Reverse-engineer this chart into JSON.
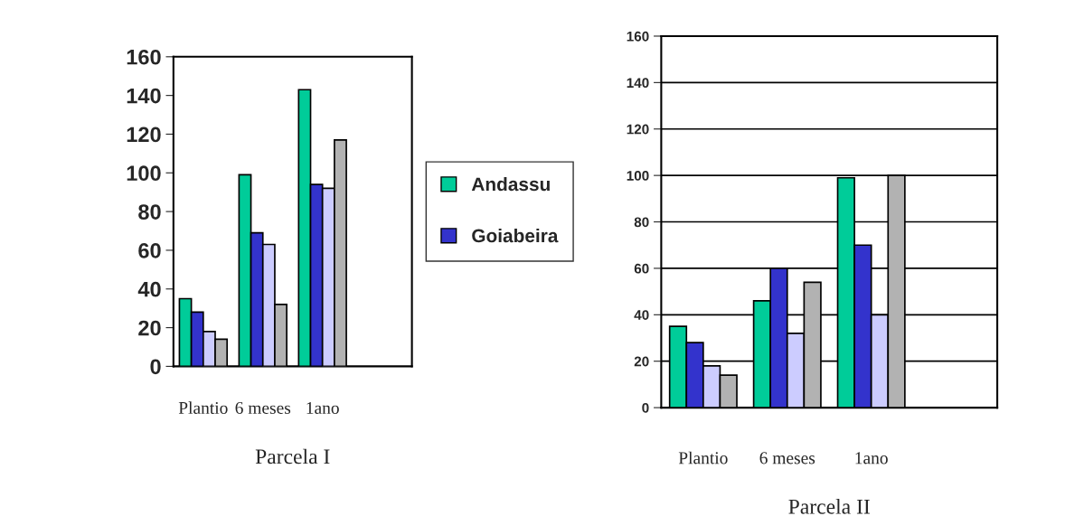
{
  "chart_data": [
    {
      "type": "bar",
      "xlabel": "Parcela I",
      "categories": [
        "Plantio",
        "6 meses",
        "1ano",
        null
      ],
      "ylim": [
        0,
        160
      ],
      "yticks": [
        0,
        20,
        40,
        60,
        80,
        100,
        120,
        140,
        160
      ],
      "grid": false,
      "legend": "right",
      "series": [
        {
          "name": "Andassu",
          "color": "#00cc99",
          "values": [
            35,
            99,
            143,
            null
          ]
        },
        {
          "name": "Goiabeira",
          "color": "#3333cc",
          "values": [
            28,
            69,
            94,
            null
          ]
        },
        {
          "color": "#ccccff",
          "values": [
            18,
            63,
            92,
            null
          ]
        },
        {
          "color": "#b2b2b2",
          "values": [
            14,
            32,
            117,
            null
          ]
        }
      ]
    },
    {
      "type": "bar",
      "xlabel": "Parcela II",
      "categories": [
        "Plantio",
        "6 meses",
        "1ano",
        null
      ],
      "ylim": [
        0,
        160
      ],
      "yticks": [
        0,
        20,
        40,
        60,
        80,
        100,
        120,
        140,
        160
      ],
      "grid": "y",
      "series": [
        {
          "color": "#00cc99",
          "values": [
            35,
            46,
            99,
            null
          ]
        },
        {
          "color": "#3333cc",
          "values": [
            28,
            60,
            70,
            null
          ]
        },
        {
          "color": "#ccccff",
          "values": [
            18,
            32,
            40,
            null
          ]
        },
        {
          "color": "#b2b2b2",
          "values": [
            14,
            54,
            100,
            null
          ]
        }
      ]
    }
  ]
}
